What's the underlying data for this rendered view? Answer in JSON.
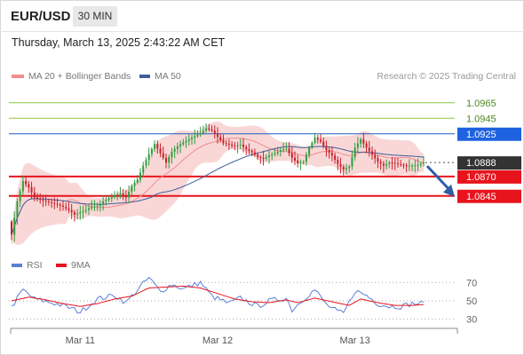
{
  "header": {
    "pair": "EUR/USD",
    "timeframe": "30 MIN",
    "datetime": "Thursday, March 13, 2025 2:43:22 AM CET"
  },
  "legend": {
    "ma20": "MA 20 + Bollinger Bands",
    "ma50": "MA 50",
    "copyright": "Research © 2025 Trading Central"
  },
  "rsi_legend": {
    "rsi": "RSI",
    "ma9": "9MA"
  },
  "colors": {
    "resistance": "#8dc63f",
    "pivot": "#1f5fbf",
    "support": "#e8141d",
    "current": "#333333",
    "bollinger": "#f7c9c9",
    "ma20": "#f08c8c",
    "ma50": "#3f5e9c",
    "candle_up": "#2e9e3f",
    "candle_down": "#c8202a",
    "rsi": "#5b7fd6",
    "rsi_ma": "#e8141d",
    "arrow": "#2e5ea8"
  },
  "chart_data": [
    {
      "type": "candlestick",
      "title": "EUR/USD",
      "ylim": [
        1.0783,
        1.0983
      ],
      "x_ticks": [
        "Mar 11",
        "Mar 12",
        "Mar 13"
      ],
      "levels": [
        {
          "value": 1.0965,
          "label": "1.0965",
          "kind": "resistance"
        },
        {
          "value": 1.0945,
          "label": "1.0945",
          "kind": "resistance"
        },
        {
          "value": 1.0925,
          "label": "1.0925",
          "kind": "pivot"
        },
        {
          "value": 1.0888,
          "label": "1.0888",
          "kind": "current"
        },
        {
          "value": 1.087,
          "label": "1.0870",
          "kind": "support"
        },
        {
          "value": 1.0845,
          "label": "1.0845",
          "kind": "support"
        }
      ],
      "forecast": {
        "direction": "down",
        "from": 1.0888,
        "to": 1.0845
      },
      "series": [
        {
          "name": "MA 20 + Bollinger Bands"
        },
        {
          "name": "MA 50"
        }
      ],
      "anchors": [
        [
          0,
          1.0795
        ],
        [
          2,
          1.0838
        ],
        [
          4,
          1.0864
        ],
        [
          6,
          1.0856
        ],
        [
          8,
          1.0843
        ],
        [
          10,
          1.084
        ],
        [
          12,
          1.0838
        ],
        [
          14,
          1.0836
        ],
        [
          16,
          1.0834
        ],
        [
          18,
          1.0831
        ],
        [
          20,
          1.0827
        ],
        [
          22,
          1.0821
        ],
        [
          24,
          1.0824
        ],
        [
          26,
          1.0827
        ],
        [
          28,
          1.0831
        ],
        [
          30,
          1.0832
        ],
        [
          32,
          1.0838
        ],
        [
          34,
          1.0842
        ],
        [
          36,
          1.0846
        ],
        [
          38,
          1.0848
        ],
        [
          40,
          1.0843
        ],
        [
          42,
          1.0858
        ],
        [
          44,
          1.0866
        ],
        [
          46,
          1.0884
        ],
        [
          48,
          1.0899
        ],
        [
          50,
          1.0912
        ],
        [
          52,
          1.09
        ],
        [
          54,
          1.0888
        ],
        [
          56,
          1.0902
        ],
        [
          58,
          1.0909
        ],
        [
          60,
          1.0914
        ],
        [
          62,
          1.0918
        ],
        [
          64,
          1.0922
        ],
        [
          66,
          1.0926
        ],
        [
          68,
          1.0932
        ],
        [
          70,
          1.0929
        ],
        [
          72,
          1.0921
        ],
        [
          74,
          1.0913
        ],
        [
          76,
          1.0911
        ],
        [
          78,
          1.0909
        ],
        [
          80,
          1.0911
        ],
        [
          82,
          1.0905
        ],
        [
          84,
          1.0901
        ],
        [
          86,
          1.0895
        ],
        [
          88,
          1.0893
        ],
        [
          90,
          1.0897
        ],
        [
          92,
          1.09
        ],
        [
          94,
          1.0904
        ],
        [
          96,
          1.0906
        ],
        [
          98,
          1.0894
        ],
        [
          100,
          1.0887
        ],
        [
          102,
          1.0889
        ],
        [
          104,
          1.0907
        ],
        [
          106,
          1.092
        ],
        [
          108,
          1.0915
        ],
        [
          110,
          1.0904
        ],
        [
          112,
          1.0897
        ],
        [
          114,
          1.0886
        ],
        [
          116,
          1.0879
        ],
        [
          118,
          1.0883
        ],
        [
          120,
          1.0907
        ],
        [
          122,
          1.0918
        ],
        [
          124,
          1.0907
        ],
        [
          126,
          1.0898
        ],
        [
          128,
          1.0889
        ],
        [
          130,
          1.0884
        ],
        [
          132,
          1.0888
        ],
        [
          134,
          1.0887
        ],
        [
          136,
          1.0885
        ],
        [
          138,
          1.0884
        ],
        [
          140,
          1.0884
        ],
        [
          142,
          1.0885
        ],
        [
          144,
          1.0888
        ]
      ]
    },
    {
      "type": "line",
      "title": "RSI",
      "ylim": [
        20,
        78
      ],
      "y_ticks": [
        70,
        50,
        30
      ],
      "series": [
        {
          "name": "RSI",
          "anchors": [
            [
              0,
              43
            ],
            [
              4,
              62
            ],
            [
              8,
              52
            ],
            [
              14,
              48
            ],
            [
              18,
              45
            ],
            [
              24,
              38
            ],
            [
              30,
              52
            ],
            [
              36,
              56
            ],
            [
              40,
              48
            ],
            [
              44,
              62
            ],
            [
              48,
              75
            ],
            [
              52,
              60
            ],
            [
              56,
              68
            ],
            [
              60,
              63
            ],
            [
              66,
              70
            ],
            [
              70,
              55
            ],
            [
              76,
              47
            ],
            [
              80,
              53
            ],
            [
              86,
              44
            ],
            [
              90,
              50
            ],
            [
              96,
              53
            ],
            [
              98,
              40
            ],
            [
              102,
              52
            ],
            [
              106,
              62
            ],
            [
              110,
              46
            ],
            [
              114,
              38
            ],
            [
              116,
              36
            ],
            [
              120,
              61
            ],
            [
              124,
              56
            ],
            [
              128,
              47
            ],
            [
              132,
              44
            ],
            [
              136,
              44
            ],
            [
              140,
              47
            ],
            [
              144,
              47
            ]
          ]
        },
        {
          "name": "9MA",
          "anchors": [
            [
              0,
              50
            ],
            [
              6,
              54
            ],
            [
              12,
              51
            ],
            [
              18,
              47
            ],
            [
              24,
              44
            ],
            [
              30,
              47
            ],
            [
              36,
              52
            ],
            [
              42,
              55
            ],
            [
              48,
              64
            ],
            [
              54,
              65
            ],
            [
              60,
              66
            ],
            [
              66,
              64
            ],
            [
              72,
              58
            ],
            [
              78,
              52
            ],
            [
              84,
              49
            ],
            [
              90,
              48
            ],
            [
              96,
              51
            ],
            [
              100,
              48
            ],
            [
              106,
              53
            ],
            [
              112,
              49
            ],
            [
              118,
              45
            ],
            [
              122,
              52
            ],
            [
              128,
              48
            ],
            [
              134,
              45
            ],
            [
              140,
              45
            ],
            [
              144,
              46
            ]
          ]
        }
      ]
    }
  ]
}
